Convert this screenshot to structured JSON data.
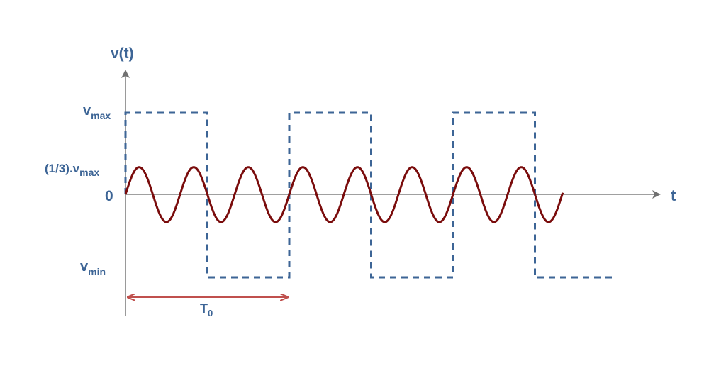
{
  "labels": {
    "y_axis": "v(t)",
    "x_axis": "t",
    "vmax_base": "v",
    "vmax_sub": "max",
    "third_prefix": "(1/3).v",
    "third_sub": "max",
    "zero": "0",
    "vmin_base": "v",
    "vmin_sub": "min",
    "period_base": "T",
    "period_sub": "0"
  },
  "chart_data": {
    "type": "line",
    "x_unit": "T0",
    "series": [
      {
        "style": "dashed square wave",
        "color": "#3d6596",
        "period": 1,
        "high": 1,
        "low": -1,
        "x_range": [
          0,
          3
        ]
      },
      {
        "style": "solid sine",
        "color": "#7a0c0c",
        "frequency_multiple": 3,
        "amplitude": 0.3333,
        "x_range": [
          0,
          2.67
        ]
      }
    ],
    "y_ticks": [
      "vmax",
      "(1/3).vmax",
      "0",
      "vmin"
    ],
    "annotation": {
      "text": "T0",
      "from": 0,
      "to": 1,
      "color": "#c0504d"
    },
    "colors": {
      "axis": "#808080",
      "text": "#3d6596"
    }
  }
}
